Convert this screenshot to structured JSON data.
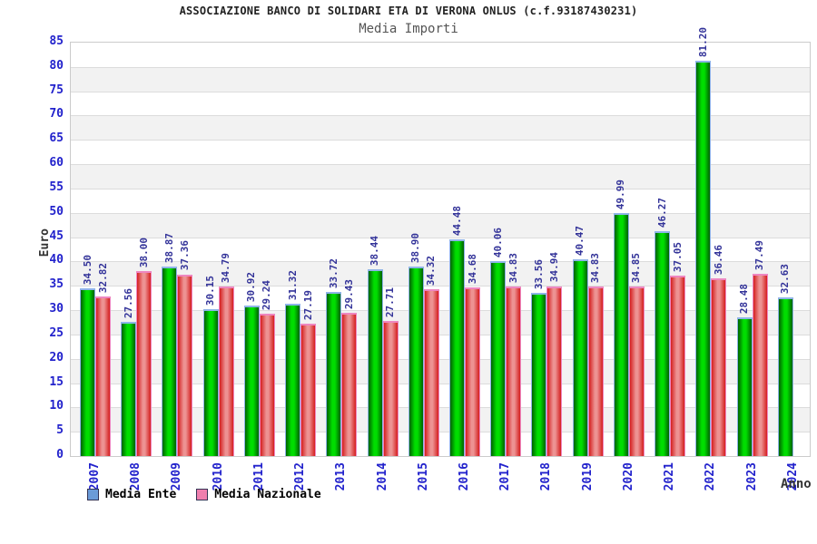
{
  "header": {
    "title": "ASSOCIAZIONE BANCO DI SOLIDARI ETA DI VERONA ONLUS (c.f.93187430231)",
    "subtitle": "Media Importi"
  },
  "chart_data": {
    "type": "bar",
    "title": "Media Importi",
    "xlabel": "Anno",
    "ylabel": "Euro",
    "ylim": [
      0,
      85
    ],
    "ytick_step": 5,
    "grid": "horizontal-bands-on",
    "legend_position": "bottom-left",
    "categories": [
      "2007",
      "2008",
      "2009",
      "2010",
      "2011",
      "2012",
      "2013",
      "2014",
      "2015",
      "2016",
      "2017",
      "2018",
      "2019",
      "2020",
      "2021",
      "2022",
      "2023",
      "2024"
    ],
    "series": [
      {
        "name": "Media Ente",
        "values": [
          34.5,
          27.56,
          38.87,
          30.15,
          30.92,
          31.32,
          33.72,
          38.44,
          38.9,
          44.48,
          40.06,
          33.56,
          40.47,
          49.99,
          46.27,
          81.2,
          28.48,
          32.63
        ]
      },
      {
        "name": "Media Nazionale",
        "values": [
          32.82,
          38.0,
          37.36,
          34.79,
          29.24,
          27.19,
          29.43,
          27.71,
          34.32,
          34.68,
          34.83,
          34.94,
          34.83,
          34.85,
          37.05,
          36.46,
          37.49,
          null
        ]
      }
    ]
  },
  "colors": {
    "bar_green_mid": "#00dd00",
    "bar_green_edge": "#006100",
    "bar_green_cap": "#8fb4e8",
    "bar_red_mid": "#ed9292",
    "bar_red_edge": "#d41f1f",
    "bar_red_cap": "#ee86c0",
    "legend_ente_swatch": "#6b9bd8",
    "legend_nazionale_swatch": "#ef7fae",
    "tick_label": "#2222cc",
    "value_label": "#333399",
    "band_gray": "#f2f2f2",
    "gridline": "#dcdcdc",
    "plot_border": "#cbcbcb"
  }
}
